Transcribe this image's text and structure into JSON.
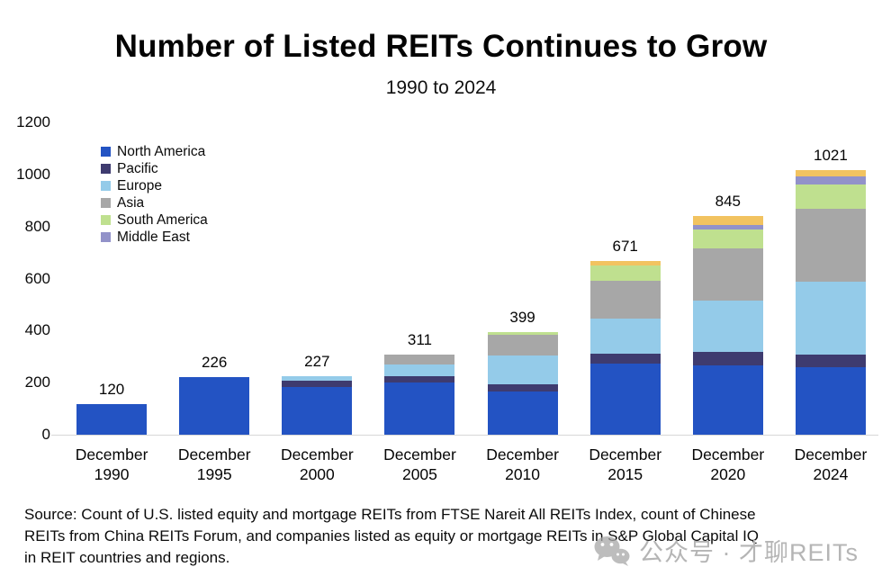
{
  "title": "Number of Listed REITs Continues to Grow",
  "subtitle": "1990 to 2024",
  "chart_data": {
    "type": "bar",
    "stacked": true,
    "title": "Number of Listed REITs Continues to Grow",
    "subtitle": "1990 to 2024",
    "categories": [
      [
        "December",
        "1990"
      ],
      [
        "December",
        "1995"
      ],
      [
        "December",
        "2000"
      ],
      [
        "December",
        "2005"
      ],
      [
        "December",
        "2010"
      ],
      [
        "December",
        "2015"
      ],
      [
        "December",
        "2020"
      ],
      [
        "December",
        "2024"
      ]
    ],
    "totals": [
      120,
      226,
      227,
      311,
      399,
      671,
      845,
      1021
    ],
    "series": [
      {
        "name": "North America",
        "color": "#2353c3",
        "in_legend": true,
        "values": [
          120,
          226,
          187,
          205,
          170,
          277,
          270,
          263
        ]
      },
      {
        "name": "Pacific",
        "color": "#3e3b6f",
        "in_legend": true,
        "values": [
          0,
          0,
          23,
          22,
          28,
          37,
          50,
          50
        ]
      },
      {
        "name": "Europe",
        "color": "#94cbe9",
        "in_legend": true,
        "values": [
          0,
          0,
          17,
          45,
          110,
          134,
          198,
          280
        ]
      },
      {
        "name": "Asia",
        "color": "#a7a7a7",
        "in_legend": true,
        "values": [
          0,
          0,
          0,
          39,
          80,
          146,
          200,
          279
        ]
      },
      {
        "name": "South America",
        "color": "#bfe08f",
        "in_legend": true,
        "values": [
          0,
          0,
          0,
          0,
          11,
          60,
          75,
          92
        ]
      },
      {
        "name": "Middle East",
        "color": "#9292c9",
        "in_legend": true,
        "values": [
          0,
          0,
          0,
          0,
          0,
          0,
          15,
          32
        ]
      },
      {
        "name": "(unlabeled)",
        "color": "#f2c360",
        "in_legend": false,
        "values": [
          0,
          0,
          0,
          0,
          0,
          17,
          37,
          25
        ]
      }
    ],
    "legend": [
      "North America",
      "Pacific",
      "Europe",
      "Asia",
      "South America",
      "Middle East"
    ],
    "legend_position": "upper-left",
    "ylim": [
      0,
      1200
    ],
    "yticks": [
      0,
      200,
      400,
      600,
      800,
      1000,
      1200
    ],
    "grid": false
  },
  "source": {
    "text": "Source: Count of U.S. listed equity and mortgage REITs from FTSE Nareit All REITs Index, count of Chinese\nREITs from China REITs Forum, and companies listed as equity or mortgage REITs in S&P Global Capital IQ\nin REIT countries and regions."
  },
  "watermark": {
    "icon": "wechat-icon",
    "text": "公众号 · 才聊REITs"
  }
}
